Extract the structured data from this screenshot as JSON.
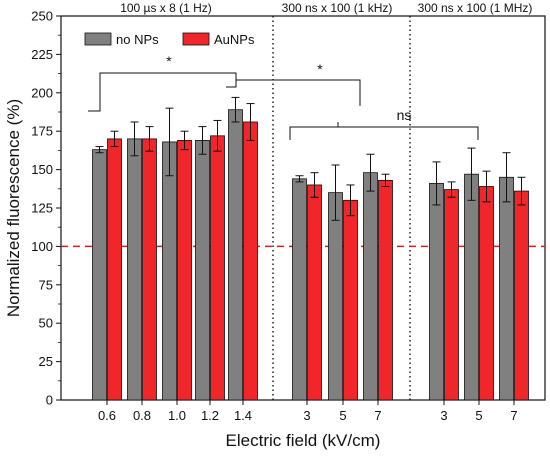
{
  "chart_data": {
    "type": "bar",
    "xlabel": "Electric field (kV/cm)",
    "ylabel": "Normalized fluorescence (%)",
    "ylim": [
      0,
      250
    ],
    "yticks": [
      0,
      25,
      50,
      75,
      100,
      125,
      150,
      175,
      200,
      225,
      250
    ],
    "reference_line": {
      "y": 100,
      "color": "#e8141c",
      "style": "dashed"
    },
    "groups": [
      {
        "label": "100 µs x 8 (1 Hz)",
        "categories": [
          "0.6",
          "0.8",
          "1.0",
          "1.2",
          "1.4"
        ]
      },
      {
        "label": "300 ns x 100 (1 kHz)",
        "categories": [
          "3",
          "5",
          "7"
        ]
      },
      {
        "label": "300 ns x 100 (1 MHz)",
        "categories": [
          "3",
          "5",
          "7"
        ]
      }
    ],
    "series": [
      {
        "name": "no NPs",
        "color": "#808080",
        "values": [
          163,
          170,
          168,
          169,
          189,
          144,
          135,
          148,
          141,
          147,
          145
        ],
        "errors": [
          2,
          11,
          22,
          9,
          8,
          2,
          18,
          12,
          14,
          17,
          16
        ]
      },
      {
        "name": "AuNPs",
        "color": "#f0262b",
        "values": [
          170,
          170,
          169,
          172,
          181,
          140,
          130,
          143,
          137,
          139,
          136
        ],
        "errors": [
          5,
          8,
          6,
          10,
          12,
          8,
          10,
          4,
          5,
          10,
          9
        ]
      }
    ],
    "legend_position": "top-left",
    "annotations": [
      {
        "text": "*"
      },
      {
        "text": "*"
      },
      {
        "text": "ns"
      }
    ]
  }
}
